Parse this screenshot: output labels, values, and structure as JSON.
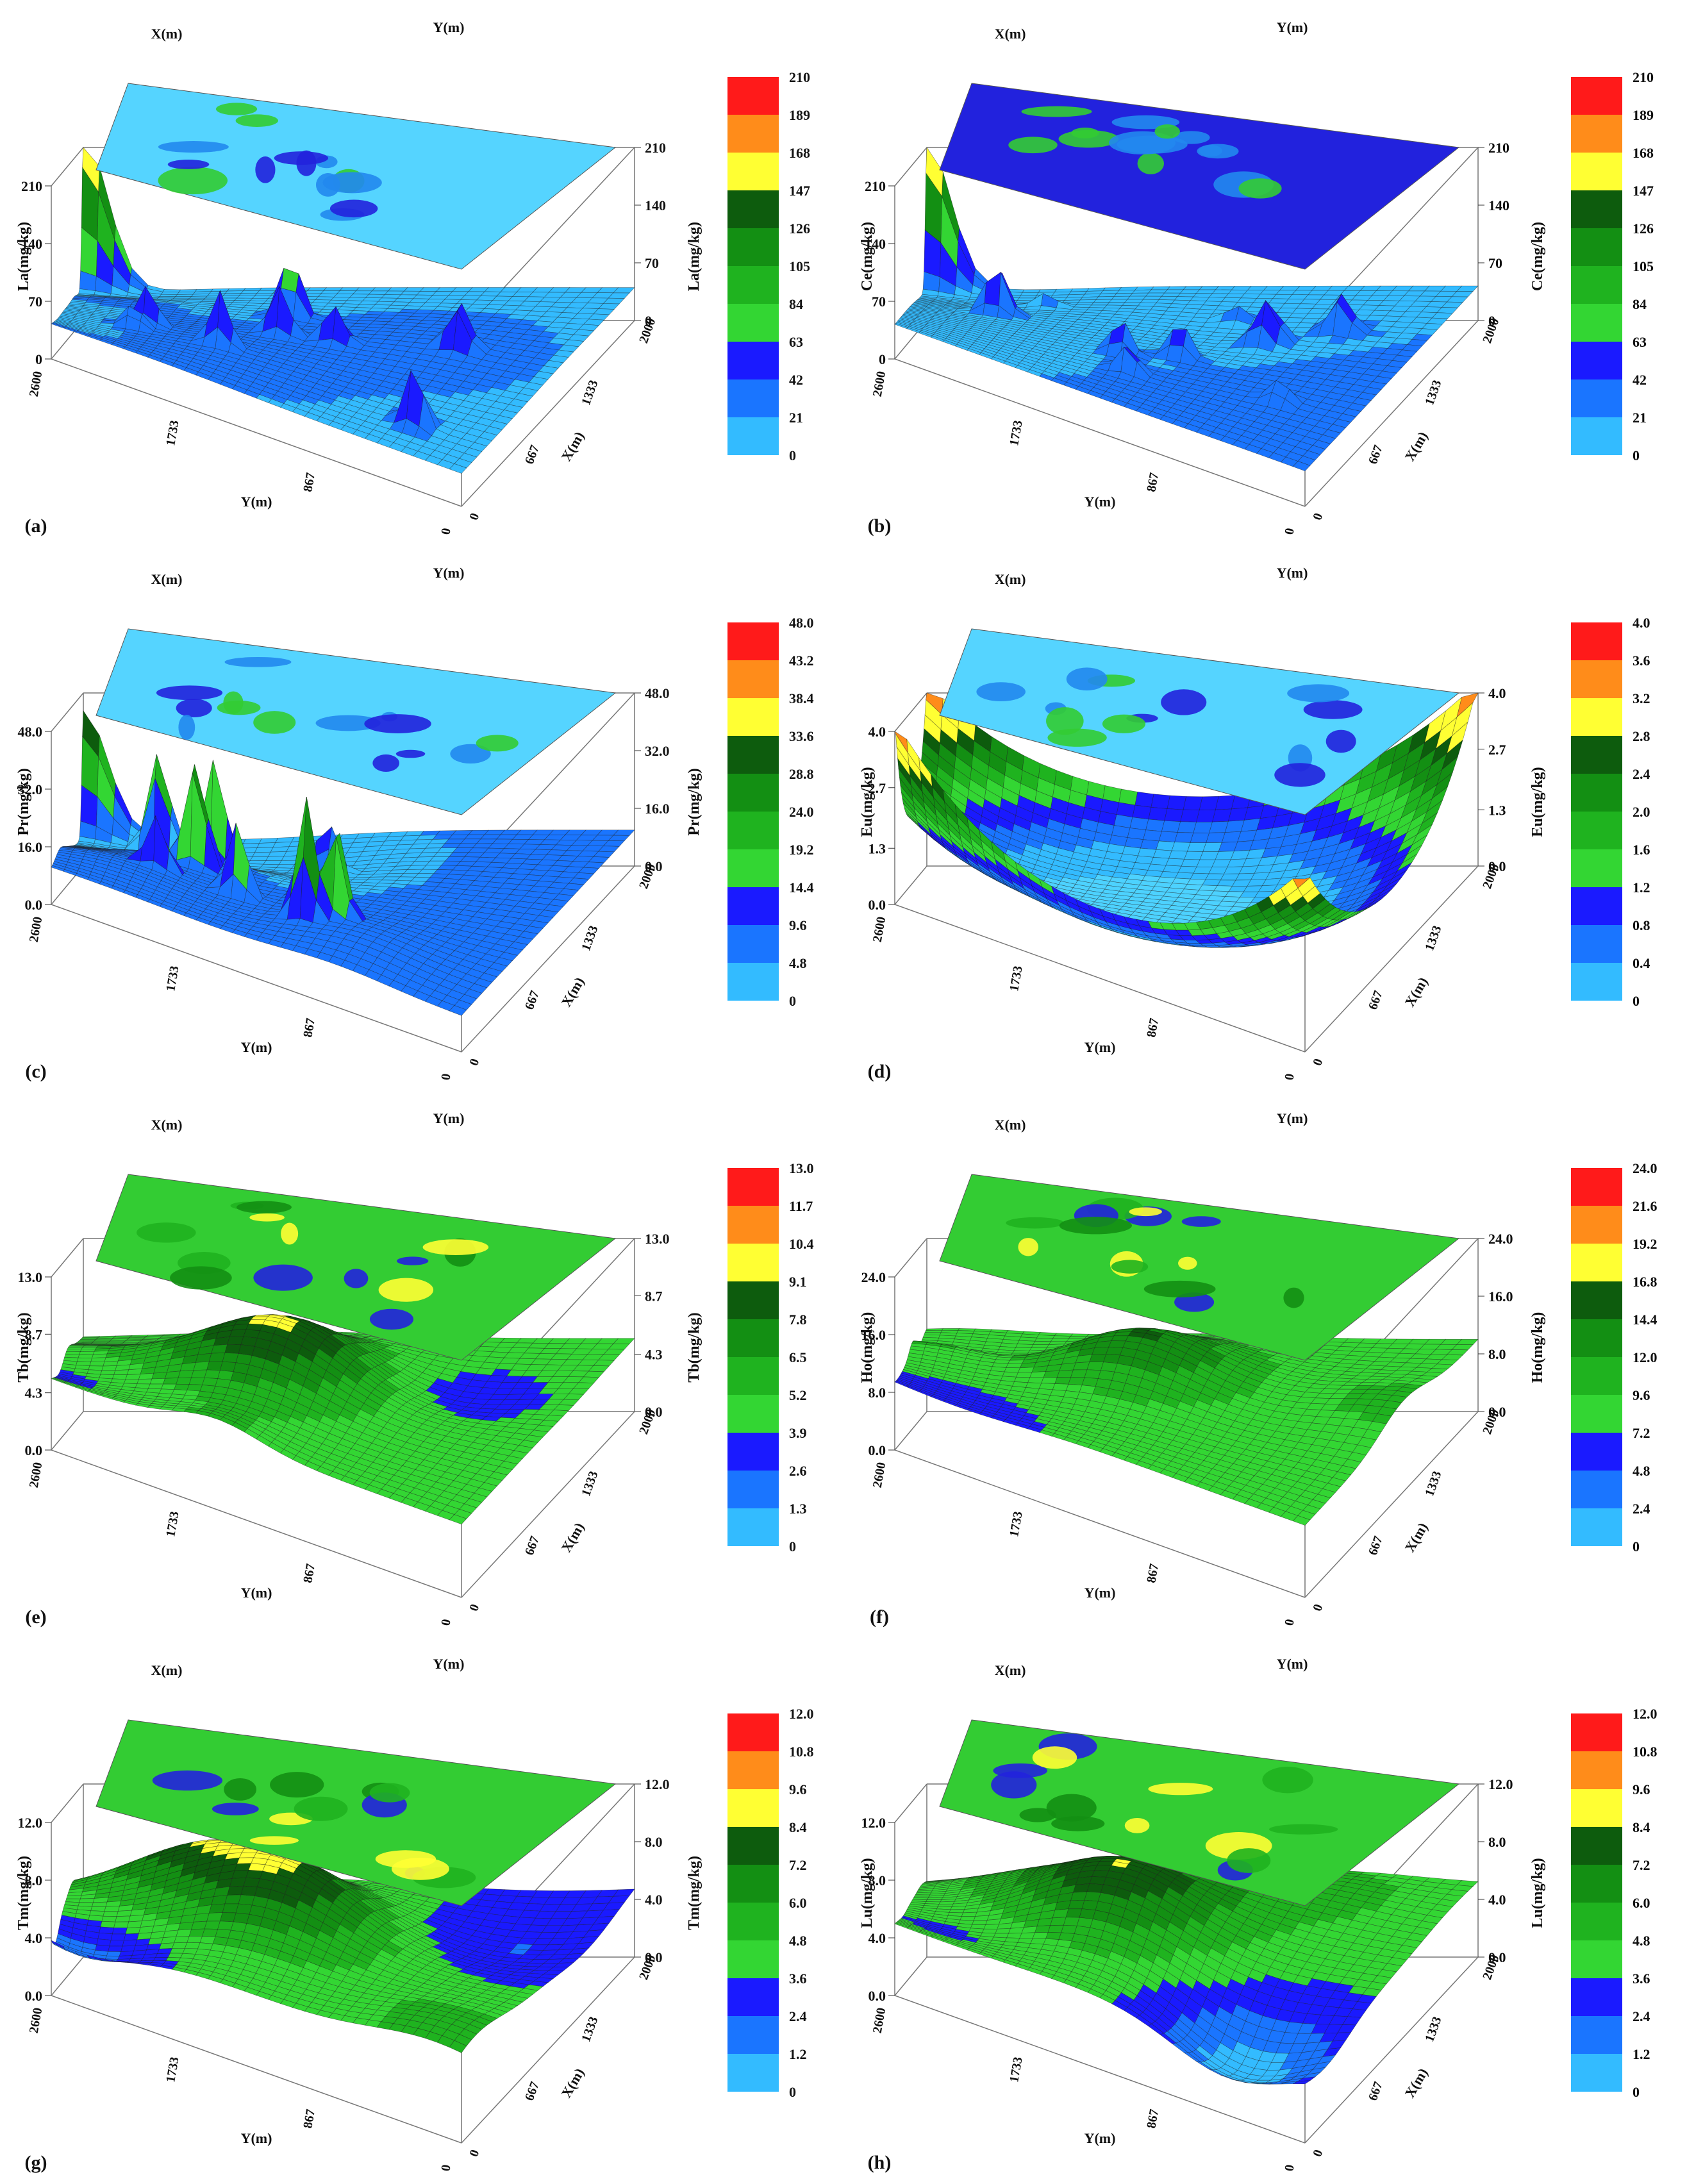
{
  "chart_data": [
    {
      "panel_label": "(a)",
      "type": "surface3d",
      "zlabel": "La(mg/kg)",
      "xlabel": "X(m)",
      "ylabel": "Y(m)",
      "x_ticks": [
        "0",
        "667",
        "1333",
        "2000"
      ],
      "y_ticks": [
        "2600",
        "1733",
        "867",
        "0"
      ],
      "z_ticks": [
        "0",
        "70",
        "140",
        "210"
      ],
      "z_ticks_right": [
        "0",
        "70",
        "140",
        "210"
      ],
      "ylim": [
        0,
        210
      ],
      "legend_levels": [
        "210",
        "189",
        "168",
        "147",
        "126",
        "105",
        "84",
        "63",
        "42",
        "21",
        "0"
      ],
      "surface": {
        "base": 40,
        "relief": 12,
        "corner_peaks": [
          185,
          0,
          0,
          0
        ],
        "spikes": 8
      }
    },
    {
      "panel_label": "(b)",
      "type": "surface3d",
      "zlabel": "Ce(mg/kg)",
      "xlabel": "X(m)",
      "ylabel": "Y(m)",
      "x_ticks": [
        "0",
        "667",
        "1333",
        "2000"
      ],
      "y_ticks": [
        "2600",
        "1733",
        "867",
        "0"
      ],
      "z_ticks": [
        "0",
        "70",
        "140",
        "210"
      ],
      "z_ticks_right": [
        "0",
        "70",
        "140",
        "210"
      ],
      "ylim": [
        0,
        210
      ],
      "legend_levels": [
        "210",
        "189",
        "168",
        "147",
        "126",
        "105",
        "84",
        "63",
        "42",
        "21",
        "0"
      ],
      "surface": {
        "base": 42,
        "relief": 8,
        "corner_peaks": [
          175,
          0,
          0,
          0
        ],
        "spikes": 12
      }
    },
    {
      "panel_label": "(c)",
      "type": "surface3d",
      "zlabel": "Pr(mg/kg)",
      "xlabel": "X(m)",
      "ylabel": "Y(m)",
      "x_ticks": [
        "0",
        "667",
        "1333",
        "2000"
      ],
      "y_ticks": [
        "2600",
        "1733",
        "867",
        "0"
      ],
      "z_ticks": [
        "0.0",
        "16.0",
        "32.0",
        "48.0"
      ],
      "z_ticks_right": [
        "0.0",
        "16.0",
        "32.0",
        "48.0"
      ],
      "ylim": [
        0,
        48
      ],
      "legend_levels": [
        "48.0",
        "43.2",
        "38.4",
        "33.6",
        "28.8",
        "24.0",
        "19.2",
        "14.4",
        "9.6",
        "4.8",
        "0"
      ],
      "surface": {
        "base": 10,
        "relief": 5,
        "corner_peaks": [
          34,
          0,
          0,
          0
        ],
        "spikes": 9
      }
    },
    {
      "panel_label": "(d)",
      "type": "surface3d",
      "zlabel": "Eu(mg/kg)",
      "xlabel": "X(m)",
      "ylabel": "Y(m)",
      "x_ticks": [
        "0",
        "667",
        "1333",
        "2000"
      ],
      "y_ticks": [
        "2600",
        "1733",
        "867",
        "0"
      ],
      "z_ticks": [
        "0.0",
        "1.3",
        "2.7",
        "4.0"
      ],
      "z_ticks_right": [
        "0.0",
        "1.3",
        "2.7",
        "4.0"
      ],
      "ylim": [
        0,
        4
      ],
      "legend_levels": [
        "4.0",
        "3.6",
        "3.2",
        "2.8",
        "2.4",
        "2.0",
        "1.6",
        "1.2",
        "0.8",
        "0.4",
        "0"
      ],
      "surface": {
        "base": 0.3,
        "relief": 0.1,
        "bowl": 3.4,
        "corner_peaks": [
          0,
          0,
          0,
          0
        ],
        "spikes": 0
      }
    },
    {
      "panel_label": "(e)",
      "type": "surface3d",
      "zlabel": "Tb(mg/kg)",
      "xlabel": "X(m)",
      "ylabel": "Y(m)",
      "x_ticks": [
        "0",
        "667",
        "1333",
        "2000"
      ],
      "y_ticks": [
        "2600",
        "1733",
        "867",
        "0"
      ],
      "z_ticks": [
        "0.0",
        "4.3",
        "8.7",
        "13.0"
      ],
      "z_ticks_right": [
        "0.0",
        "4.3",
        "8.7",
        "13.0"
      ],
      "ylim": [
        0,
        13
      ],
      "legend_levels": [
        "13.0",
        "11.7",
        "10.4",
        "9.1",
        "7.8",
        "6.5",
        "5.2",
        "3.9",
        "2.6",
        "1.3",
        "0"
      ],
      "surface": {
        "base": 5.5,
        "relief": 2.2,
        "hill": 5.5,
        "corner_peaks": [
          0,
          0,
          0,
          0
        ],
        "spikes": 0
      }
    },
    {
      "panel_label": "(f)",
      "type": "surface3d",
      "zlabel": "Ho(mg/kg)",
      "xlabel": "X(m)",
      "ylabel": "Y(m)",
      "x_ticks": [
        "0",
        "667",
        "1333",
        "2000"
      ],
      "y_ticks": [
        "2600",
        "1733",
        "867",
        "0"
      ],
      "z_ticks": [
        "0.0",
        "8.0",
        "16.0",
        "24.0"
      ],
      "z_ticks_right": [
        "0.0",
        "8.0",
        "16.0",
        "24.0"
      ],
      "ylim": [
        0,
        24
      ],
      "legend_levels": [
        "24.0",
        "21.6",
        "19.2",
        "16.8",
        "14.4",
        "12.0",
        "9.6",
        "7.2",
        "4.8",
        "2.4",
        "0"
      ],
      "surface": {
        "base": 10,
        "relief": 4,
        "hill": 9,
        "corner_peaks": [
          0,
          0,
          0,
          0
        ],
        "spikes": 0
      }
    },
    {
      "panel_label": "(g)",
      "type": "surface3d",
      "zlabel": "Tm(mg/kg)",
      "xlabel": "X(m)",
      "ylabel": "Y(m)",
      "x_ticks": [
        "0",
        "667",
        "1333",
        "2000"
      ],
      "y_ticks": [
        "2600",
        "1733",
        "867",
        "0"
      ],
      "z_ticks": [
        "0.0",
        "4.0",
        "8.0",
        "12.0"
      ],
      "z_ticks_right": [
        "0.0",
        "4.0",
        "8.0",
        "12.0"
      ],
      "ylim": [
        0,
        12
      ],
      "legend_levels": [
        "12.0",
        "10.8",
        "9.6",
        "8.4",
        "7.2",
        "6.0",
        "4.8",
        "3.6",
        "2.4",
        "1.2",
        "0"
      ],
      "surface": {
        "base": 5,
        "relief": 2,
        "hill": 4.5,
        "corner_peaks": [
          0,
          0,
          0,
          0
        ],
        "spikes": 0
      }
    },
    {
      "panel_label": "(h)",
      "type": "surface3d",
      "zlabel": "Lu(mg/kg)",
      "xlabel": "X(m)",
      "ylabel": "Y(m)",
      "x_ticks": [
        "0",
        "667",
        "1333",
        "2000"
      ],
      "y_ticks": [
        "2600",
        "1733",
        "867",
        "0"
      ],
      "z_ticks": [
        "0.0",
        "4.0",
        "8.0",
        "12.0"
      ],
      "z_ticks_right": [
        "0.0",
        "4.0",
        "8.0",
        "12.0"
      ],
      "ylim": [
        0,
        12
      ],
      "legend_levels": [
        "12.0",
        "10.8",
        "9.6",
        "8.4",
        "7.2",
        "6.0",
        "4.8",
        "3.6",
        "2.4",
        "1.2",
        "0"
      ],
      "surface": {
        "base": 5,
        "relief": 2,
        "hill": 4.5,
        "corner_peaks": [
          0,
          0,
          0,
          0
        ],
        "spikes": 0
      }
    }
  ],
  "legend_colors": [
    "#ff1a1a",
    "#ff8c1a",
    "#ffff33",
    "#0d5c0d",
    "#138f13",
    "#1fb31f",
    "#33d633",
    "#1a1aff",
    "#1a75ff",
    "#33bbff",
    "#4dd2ff"
  ],
  "contour_colors": {
    "light": "#55d4ff",
    "mid": "#2288ee",
    "dark": "#2222dd",
    "green": "#33cc33",
    "yellow": "#ffff33"
  }
}
